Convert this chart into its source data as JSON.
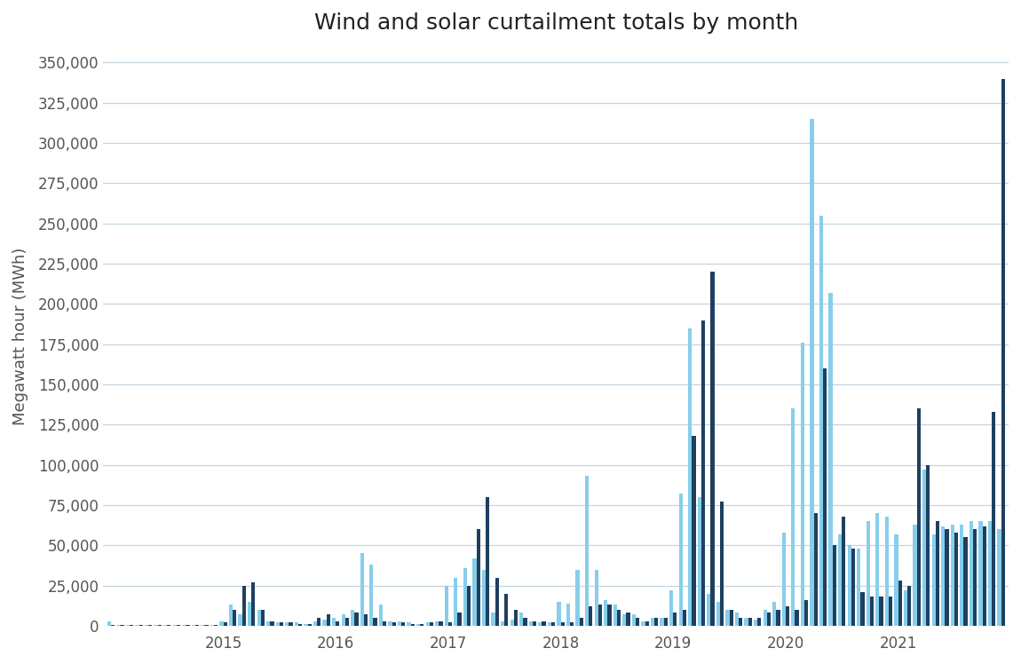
{
  "title": "Wind and solar curtailment totals by month",
  "ylabel": "Megawatt hour (MWh)",
  "wind_color": "#1e4060",
  "solar_color": "#87ceeb",
  "ylim": [
    0,
    360000
  ],
  "yticks": [
    0,
    25000,
    50000,
    75000,
    100000,
    125000,
    150000,
    175000,
    200000,
    225000,
    250000,
    275000,
    300000,
    325000,
    350000
  ],
  "solar": [
    3000,
    500,
    500,
    500,
    500,
    500,
    500,
    500,
    500,
    500,
    500,
    500,
    3000,
    13000,
    7000,
    15000,
    10000,
    3000,
    2000,
    2000,
    2000,
    1000,
    3000,
    4000,
    5000,
    7000,
    10000,
    45000,
    38000,
    13000,
    3000,
    3000,
    2000,
    1000,
    2000,
    3000,
    25000,
    30000,
    36000,
    42000,
    35000,
    8000,
    3000,
    4000,
    8000,
    3000,
    2000,
    2000,
    15000,
    14000,
    35000,
    93000,
    35000,
    16000,
    13000,
    7000,
    7000,
    3000,
    5000,
    5000,
    22000,
    82000,
    185000,
    80000,
    20000,
    15000,
    10000,
    8000,
    5000,
    4000,
    10000,
    15000,
    58000,
    135000,
    176000,
    315000,
    255000,
    207000,
    57000,
    50000,
    48000,
    65000,
    70000,
    68000,
    57000,
    22000,
    63000,
    97000,
    57000,
    62000,
    63000,
    63000,
    65000,
    65000,
    65000,
    60000
  ],
  "wind": [
    500,
    300,
    300,
    300,
    300,
    300,
    300,
    300,
    300,
    300,
    300,
    300,
    2000,
    10000,
    25000,
    27000,
    10000,
    3000,
    2000,
    2000,
    1000,
    1000,
    5000,
    7000,
    3000,
    5000,
    8000,
    7000,
    5000,
    3000,
    2000,
    2000,
    1000,
    1000,
    2000,
    3000,
    2000,
    8000,
    25000,
    60000,
    80000,
    30000,
    20000,
    10000,
    5000,
    3000,
    3000,
    2000,
    2000,
    2000,
    5000,
    12000,
    13000,
    13000,
    10000,
    8000,
    5000,
    3000,
    5000,
    5000,
    8000,
    10000,
    118000,
    190000,
    220000,
    77000,
    10000,
    5000,
    5000,
    5000,
    8000,
    10000,
    12000,
    10000,
    16000,
    70000,
    160000,
    50000,
    68000,
    48000,
    21000,
    18000,
    18000,
    18000,
    28000,
    25000,
    135000,
    100000,
    65000,
    60000,
    58000,
    55000,
    60000,
    62000,
    133000,
    340000
  ],
  "year_labels": [
    "2015",
    "2016",
    "2017",
    "2018",
    "2019",
    "2020",
    "2021"
  ],
  "grid_color": "#c5d5e0",
  "tick_color": "#555555",
  "title_fontsize": 18,
  "label_fontsize": 13,
  "tick_fontsize": 12
}
